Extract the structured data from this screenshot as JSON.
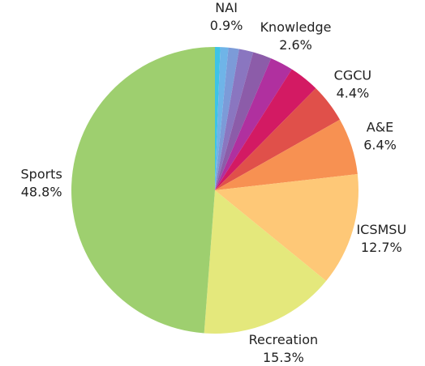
{
  "chart_data": {
    "type": "pie",
    "categories": [
      null,
      "NAI",
      null,
      null,
      null,
      "Knowledge",
      null,
      "CGCU",
      "A&E",
      "ICSMSU",
      "Recreation",
      "Sports"
    ],
    "values": [
      0.6,
      0.9,
      1.2,
      1.6,
      2.1,
      2.6,
      3.4,
      4.4,
      6.4,
      12.7,
      15.3,
      48.8
    ],
    "value_labels": [
      null,
      "0.9%",
      null,
      null,
      null,
      "2.6%",
      null,
      "4.4%",
      "6.4%",
      "12.7%",
      "15.3%",
      "48.8%"
    ],
    "colors": [
      "#3ec3e6",
      "#6fb4e8",
      "#7c9bd8",
      "#8a76c0",
      "#8c5ca9",
      "#b0309f",
      "#d31a63",
      "#e0504a",
      "#f79152",
      "#fec877",
      "#e4e87c",
      "#9ecf6f"
    ]
  }
}
